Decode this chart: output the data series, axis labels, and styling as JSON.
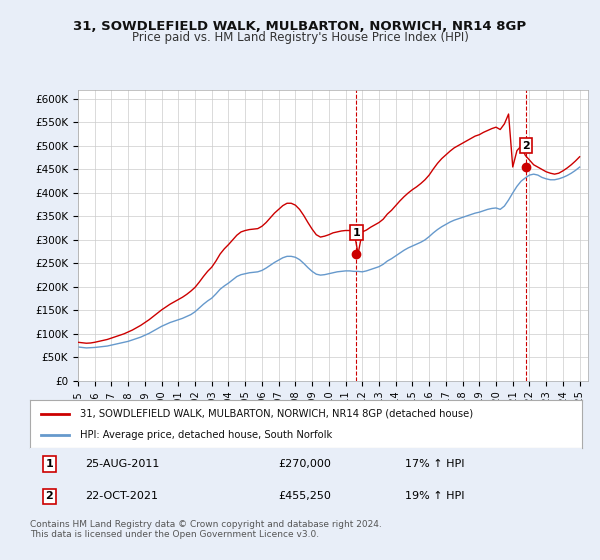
{
  "title": "31, SOWDLEFIELD WALK, MULBARTON, NORWICH, NR14 8GP",
  "subtitle": "Price paid vs. HM Land Registry's House Price Index (HPI)",
  "background_color": "#e8eef8",
  "plot_bg_color": "#ffffff",
  "ylabel_color": "#333333",
  "grid_color": "#cccccc",
  "ylim": [
    0,
    620000
  ],
  "yticks": [
    0,
    50000,
    100000,
    150000,
    200000,
    250000,
    300000,
    350000,
    400000,
    450000,
    500000,
    550000,
    600000
  ],
  "ytick_labels": [
    "£0",
    "£50K",
    "£100K",
    "£150K",
    "£200K",
    "£250K",
    "£300K",
    "£350K",
    "£400K",
    "£450K",
    "£500K",
    "£550K",
    "£600K"
  ],
  "xlim_start": 1995.0,
  "xlim_end": 2025.5,
  "xtick_years": [
    1995,
    1996,
    1997,
    1998,
    1999,
    2000,
    2001,
    2002,
    2003,
    2004,
    2005,
    2006,
    2007,
    2008,
    2009,
    2010,
    2011,
    2012,
    2013,
    2014,
    2015,
    2016,
    2017,
    2018,
    2019,
    2020,
    2021,
    2022,
    2023,
    2024,
    2025
  ],
  "sale1_x": 2011.65,
  "sale1_y": 270000,
  "sale1_label": "1",
  "sale2_x": 2021.8,
  "sale2_y": 455250,
  "sale2_label": "2",
  "vline1_x": 2011.65,
  "vline2_x": 2021.8,
  "vline_color": "#cc0000",
  "vline_style": "--",
  "legend_line1": "31, SOWDLEFIELD WALK, MULBARTON, NORWICH, NR14 8GP (detached house)",
  "legend_line2": "HPI: Average price, detached house, South Norfolk",
  "annotation1_box": "1",
  "annotation1_date": "25-AUG-2011",
  "annotation1_price": "£270,000",
  "annotation1_hpi": "17% ↑ HPI",
  "annotation2_box": "2",
  "annotation2_date": "22-OCT-2021",
  "annotation2_price": "£455,250",
  "annotation2_hpi": "19% ↑ HPI",
  "footer": "Contains HM Land Registry data © Crown copyright and database right 2024.\nThis data is licensed under the Open Government Licence v3.0.",
  "red_line_color": "#cc0000",
  "blue_line_color": "#6699cc",
  "hpi_x": [
    1995.0,
    1995.25,
    1995.5,
    1995.75,
    1996.0,
    1996.25,
    1996.5,
    1996.75,
    1997.0,
    1997.25,
    1997.5,
    1997.75,
    1998.0,
    1998.25,
    1998.5,
    1998.75,
    1999.0,
    1999.25,
    1999.5,
    1999.75,
    2000.0,
    2000.25,
    2000.5,
    2000.75,
    2001.0,
    2001.25,
    2001.5,
    2001.75,
    2002.0,
    2002.25,
    2002.5,
    2002.75,
    2003.0,
    2003.25,
    2003.5,
    2003.75,
    2004.0,
    2004.25,
    2004.5,
    2004.75,
    2005.0,
    2005.25,
    2005.5,
    2005.75,
    2006.0,
    2006.25,
    2006.5,
    2006.75,
    2007.0,
    2007.25,
    2007.5,
    2007.75,
    2008.0,
    2008.25,
    2008.5,
    2008.75,
    2009.0,
    2009.25,
    2009.5,
    2009.75,
    2010.0,
    2010.25,
    2010.5,
    2010.75,
    2011.0,
    2011.25,
    2011.5,
    2011.75,
    2012.0,
    2012.25,
    2012.5,
    2012.75,
    2013.0,
    2013.25,
    2013.5,
    2013.75,
    2014.0,
    2014.25,
    2014.5,
    2014.75,
    2015.0,
    2015.25,
    2015.5,
    2015.75,
    2016.0,
    2016.25,
    2016.5,
    2016.75,
    2017.0,
    2017.25,
    2017.5,
    2017.75,
    2018.0,
    2018.25,
    2018.5,
    2018.75,
    2019.0,
    2019.25,
    2019.5,
    2019.75,
    2020.0,
    2020.25,
    2020.5,
    2020.75,
    2021.0,
    2021.25,
    2021.5,
    2021.75,
    2022.0,
    2022.25,
    2022.5,
    2022.75,
    2023.0,
    2023.25,
    2023.5,
    2023.75,
    2024.0,
    2024.25,
    2024.5,
    2024.75,
    2025.0
  ],
  "hpi_y": [
    72000,
    71000,
    70000,
    70500,
    71000,
    72000,
    73000,
    74000,
    76000,
    78000,
    80000,
    82000,
    84000,
    87000,
    90000,
    93000,
    97000,
    101000,
    106000,
    111000,
    116000,
    120000,
    124000,
    127000,
    130000,
    133000,
    137000,
    141000,
    147000,
    155000,
    163000,
    170000,
    176000,
    185000,
    195000,
    202000,
    208000,
    215000,
    222000,
    226000,
    228000,
    230000,
    231000,
    232000,
    235000,
    240000,
    246000,
    252000,
    257000,
    262000,
    265000,
    265000,
    263000,
    258000,
    250000,
    241000,
    233000,
    227000,
    225000,
    226000,
    228000,
    230000,
    232000,
    233000,
    234000,
    234000,
    233000,
    233000,
    232000,
    234000,
    237000,
    240000,
    243000,
    248000,
    255000,
    260000,
    266000,
    272000,
    278000,
    283000,
    287000,
    291000,
    295000,
    300000,
    307000,
    315000,
    322000,
    328000,
    333000,
    338000,
    342000,
    345000,
    348000,
    351000,
    354000,
    357000,
    359000,
    362000,
    365000,
    367000,
    368000,
    365000,
    372000,
    385000,
    400000,
    414000,
    425000,
    432000,
    438000,
    440000,
    438000,
    433000,
    430000,
    428000,
    428000,
    430000,
    433000,
    437000,
    442000,
    448000,
    455000
  ],
  "red_x": [
    1995.0,
    1995.25,
    1995.5,
    1995.75,
    1996.0,
    1996.25,
    1996.5,
    1996.75,
    1997.0,
    1997.25,
    1997.5,
    1997.75,
    1998.0,
    1998.25,
    1998.5,
    1998.75,
    1999.0,
    1999.25,
    1999.5,
    1999.75,
    2000.0,
    2000.25,
    2000.5,
    2000.75,
    2001.0,
    2001.25,
    2001.5,
    2001.75,
    2002.0,
    2002.25,
    2002.5,
    2002.75,
    2003.0,
    2003.25,
    2003.5,
    2003.75,
    2004.0,
    2004.25,
    2004.5,
    2004.75,
    2005.0,
    2005.25,
    2005.5,
    2005.75,
    2006.0,
    2006.25,
    2006.5,
    2006.75,
    2007.0,
    2007.25,
    2007.5,
    2007.75,
    2008.0,
    2008.25,
    2008.5,
    2008.75,
    2009.0,
    2009.25,
    2009.5,
    2009.75,
    2010.0,
    2010.25,
    2010.5,
    2010.75,
    2011.0,
    2011.25,
    2011.5,
    2011.75,
    2012.0,
    2012.25,
    2012.5,
    2012.75,
    2013.0,
    2013.25,
    2013.5,
    2013.75,
    2014.0,
    2014.25,
    2014.5,
    2014.75,
    2015.0,
    2015.25,
    2015.5,
    2015.75,
    2016.0,
    2016.25,
    2016.5,
    2016.75,
    2017.0,
    2017.25,
    2017.5,
    2017.75,
    2018.0,
    2018.25,
    2018.5,
    2018.75,
    2019.0,
    2019.25,
    2019.5,
    2019.75,
    2020.0,
    2020.25,
    2020.5,
    2020.75,
    2021.0,
    2021.25,
    2021.5,
    2021.75,
    2022.0,
    2022.25,
    2022.5,
    2022.75,
    2023.0,
    2023.25,
    2023.5,
    2023.75,
    2024.0,
    2024.25,
    2024.5,
    2024.75,
    2025.0
  ],
  "red_y": [
    82000,
    81000,
    80000,
    80500,
    82000,
    84000,
    86000,
    88000,
    91000,
    94000,
    97000,
    100000,
    104000,
    108000,
    113000,
    118000,
    124000,
    130000,
    137000,
    144000,
    151000,
    157000,
    163000,
    168000,
    173000,
    178000,
    184000,
    191000,
    199000,
    210000,
    222000,
    233000,
    242000,
    255000,
    270000,
    281000,
    290000,
    300000,
    310000,
    317000,
    320000,
    322000,
    323000,
    324000,
    329000,
    337000,
    347000,
    357000,
    365000,
    373000,
    378000,
    378000,
    374000,
    365000,
    352000,
    337000,
    323000,
    311000,
    306000,
    308000,
    311000,
    315000,
    317000,
    319000,
    320000,
    320000,
    320000,
    270000,
    317000,
    321000,
    327000,
    332000,
    337000,
    344000,
    355000,
    363000,
    373000,
    383000,
    392000,
    400000,
    407000,
    413000,
    420000,
    428000,
    438000,
    451000,
    463000,
    473000,
    481000,
    489000,
    496000,
    501000,
    506000,
    511000,
    516000,
    521000,
    524000,
    529000,
    533000,
    537000,
    540000,
    535000,
    547000,
    568000,
    455250,
    490000,
    500000,
    480000,
    470000,
    460000,
    455000,
    450000,
    445000,
    442000,
    440000,
    442000,
    447000,
    453000,
    460000,
    468000,
    477000
  ]
}
